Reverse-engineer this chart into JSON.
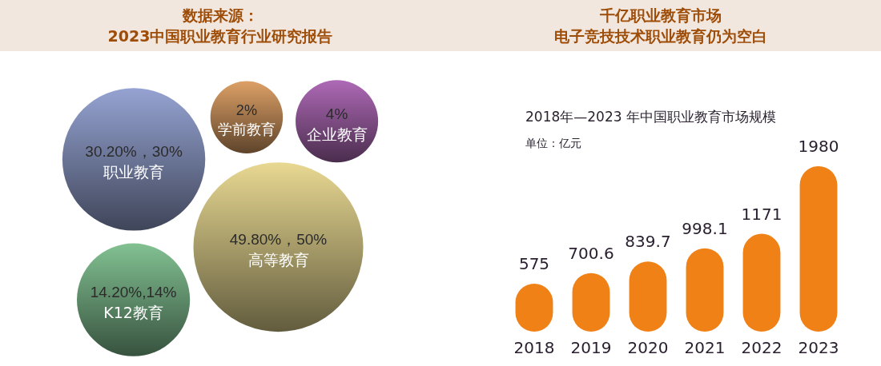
{
  "chart_data": [
    {
      "type": "other",
      "title": "数据来源：\n2023中国职业教育行业研究报告",
      "categories": [
        "职业教育",
        "学前教育",
        "企业教育",
        "K12教育",
        "高等教育"
      ],
      "values": [
        30.2,
        2,
        4,
        14.2,
        49.8
      ],
      "value_labels": [
        "30.20%，30%",
        "2%",
        "4%",
        "14.20%,14%",
        "49.80%，50%"
      ],
      "colors": [
        "#6c7698",
        "#a0744a",
        "#7e4c84",
        "#5e8c6a",
        "#a89d6a"
      ]
    },
    {
      "type": "bar",
      "title": "2018年—2023 年中国职业教育市场规模",
      "ylabel": "单位：亿元",
      "annotations": [
        "千亿职业教育市场",
        "电子竞技技术职业教育仍为空白"
      ],
      "categories": [
        "2018",
        "2019",
        "2020",
        "2021",
        "2022",
        "2023"
      ],
      "values": [
        575,
        700.6,
        839.7,
        998.1,
        1171,
        1980
      ],
      "color": "#f08116",
      "data_labels": true
    }
  ]
}
